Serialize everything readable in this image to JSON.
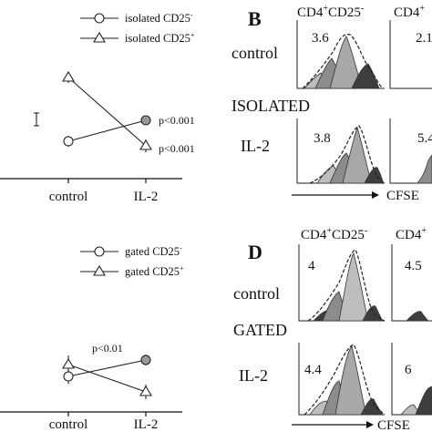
{
  "figure": {
    "panel_letters": [
      "B",
      "D"
    ],
    "top_left": {
      "legend": [
        "isolated CD25",
        "isolated CD25"
      ],
      "legend_superscripts": [
        "-",
        "+"
      ],
      "xticks": [
        "control",
        "IL-2"
      ],
      "pvalues": [
        "p<0.001",
        "p<0.001"
      ]
    },
    "bottom_left": {
      "legend": [
        "gated CD25",
        "gated CD25"
      ],
      "legend_superscripts": [
        "-",
        "+"
      ],
      "xticks": [
        "control",
        "IL-2"
      ],
      "pvalues": [
        "p<0.01"
      ]
    },
    "panel_b": {
      "col1_header": "CD4",
      "col1_header_sup1": "+",
      "col1_header_mid": "CD25",
      "col1_header_sup2": "-",
      "col2_header": "CD4",
      "col2_header_sup": "+",
      "row_labels": [
        "control",
        "ISOLATED",
        "IL-2"
      ],
      "values": [
        "3.6",
        "2.1",
        "3.8",
        "5.4"
      ],
      "axis_label": "CFSE"
    },
    "panel_d": {
      "col1_header": "CD4",
      "col1_header_sup1": "+",
      "col1_header_mid": "CD25",
      "col1_header_sup2": "-",
      "col2_header": "CD4",
      "col2_header_sup": "+",
      "row_labels": [
        "control",
        "GATED",
        "IL-2"
      ],
      "values": [
        "4",
        "4.5",
        "4.4",
        "6"
      ],
      "axis_label": "CFSE"
    }
  },
  "chart_data": [
    {
      "type": "line",
      "categories": [
        "control",
        "IL-2"
      ],
      "series": [
        {
          "name": "isolated CD25-",
          "values": [
            0.3,
            0.5
          ]
        },
        {
          "name": "isolated CD25+",
          "values": [
            0.85,
            0.25
          ]
        }
      ]
    },
    {
      "type": "line",
      "categories": [
        "control",
        "IL-2"
      ],
      "series": [
        {
          "name": "gated CD25-",
          "values": [
            0.3,
            0.5
          ]
        },
        {
          "name": "gated CD25+",
          "values": [
            0.35,
            0.15
          ]
        }
      ]
    }
  ]
}
